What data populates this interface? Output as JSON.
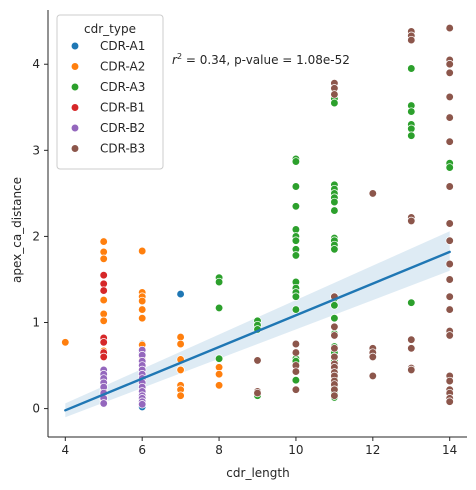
{
  "chart_data": {
    "type": "scatter",
    "xlabel": "cdr_length",
    "ylabel": "apex_ca_distance",
    "xlim": [
      3.55,
      14.45
    ],
    "ylim": [
      -0.33,
      4.63
    ],
    "x_ticks": [
      4,
      6,
      8,
      10,
      12,
      14
    ],
    "y_ticks": [
      0,
      1,
      2,
      3,
      4
    ],
    "legend": {
      "title": "cdr_type",
      "placement": "top-left",
      "entries": [
        "CDR-A1",
        "CDR-A2",
        "CDR-A3",
        "CDR-B1",
        "CDR-B2",
        "CDR-B3"
      ]
    },
    "annotation": {
      "r2_label": "r",
      "r2_sup": "2",
      "text": " =  0.34, p-value =  1.08e-52"
    },
    "regression": {
      "x": [
        4,
        14
      ],
      "y": [
        -0.02,
        1.82
      ],
      "ci_lower": [
        -0.1,
        1.6
      ],
      "ci_upper": [
        0.06,
        2.06
      ],
      "color": "#1f77b4"
    },
    "colors": {
      "CDR-A1": "#1f77b4",
      "CDR-A2": "#ff7f0e",
      "CDR-A3": "#2ca02c",
      "CDR-B1": "#d62728",
      "CDR-B2": "#9467bd",
      "CDR-B3": "#8c564b"
    },
    "series": [
      {
        "name": "CDR-A1",
        "points": [
          [
            6,
            0.02
          ],
          [
            6,
            0.1
          ],
          [
            6,
            0.2
          ],
          [
            6,
            0.35
          ],
          [
            6,
            0.5
          ],
          [
            6,
            0.65
          ],
          [
            6,
            0.75
          ],
          [
            7,
            1.33
          ]
        ]
      },
      {
        "name": "CDR-A2",
        "points": [
          [
            4,
            0.77
          ],
          [
            5,
            1.94
          ],
          [
            5,
            1.82
          ],
          [
            5,
            1.74
          ],
          [
            5,
            1.26
          ],
          [
            5,
            1.1
          ],
          [
            5,
            1.02
          ],
          [
            5,
            0.67
          ],
          [
            5,
            0.37
          ],
          [
            5,
            0.1
          ],
          [
            6,
            1.83
          ],
          [
            6,
            1.35
          ],
          [
            6,
            1.3
          ],
          [
            6,
            1.25
          ],
          [
            6,
            1.15
          ],
          [
            6,
            1.05
          ],
          [
            6,
            0.74
          ],
          [
            6,
            0.68
          ],
          [
            6,
            0.55
          ],
          [
            7,
            0.83
          ],
          [
            7,
            0.75
          ],
          [
            7,
            0.57
          ],
          [
            7,
            0.45
          ],
          [
            7,
            0.27
          ],
          [
            7,
            0.22
          ],
          [
            7,
            0.15
          ],
          [
            8,
            0.48
          ],
          [
            8,
            0.4
          ],
          [
            8,
            0.27
          ]
        ]
      },
      {
        "name": "CDR-A3",
        "points": [
          [
            8,
            1.52
          ],
          [
            8,
            1.47
          ],
          [
            8,
            1.17
          ],
          [
            8,
            0.58
          ],
          [
            9,
            1.02
          ],
          [
            9,
            0.97
          ],
          [
            9,
            0.92
          ],
          [
            9,
            0.2
          ],
          [
            9,
            0.15
          ],
          [
            10,
            2.9
          ],
          [
            10,
            2.87
          ],
          [
            10,
            2.58
          ],
          [
            10,
            2.35
          ],
          [
            10,
            2.08
          ],
          [
            10,
            2.0
          ],
          [
            10,
            1.95
          ],
          [
            10,
            1.85
          ],
          [
            10,
            1.78
          ],
          [
            10,
            1.47
          ],
          [
            10,
            1.4
          ],
          [
            10,
            1.35
          ],
          [
            10,
            1.3
          ],
          [
            10,
            1.15
          ],
          [
            10,
            0.58
          ],
          [
            10,
            0.55
          ],
          [
            10,
            0.33
          ],
          [
            11,
            3.6
          ],
          [
            11,
            3.55
          ],
          [
            11,
            2.6
          ],
          [
            11,
            2.55
          ],
          [
            11,
            2.5
          ],
          [
            11,
            2.45
          ],
          [
            11,
            2.4
          ],
          [
            11,
            2.3
          ],
          [
            11,
            1.98
          ],
          [
            11,
            1.95
          ],
          [
            11,
            1.9
          ],
          [
            11,
            1.85
          ],
          [
            11,
            1.28
          ],
          [
            11,
            1.2
          ],
          [
            11,
            1.05
          ],
          [
            11,
            0.87
          ],
          [
            11,
            0.72
          ],
          [
            11,
            0.65
          ],
          [
            11,
            0.55
          ],
          [
            11,
            0.45
          ],
          [
            11,
            0.35
          ],
          [
            11,
            0.25
          ],
          [
            11,
            0.18
          ],
          [
            11,
            0.13
          ],
          [
            13,
            3.95
          ],
          [
            13,
            3.52
          ],
          [
            13,
            3.45
          ],
          [
            13,
            3.3
          ],
          [
            13,
            3.25
          ],
          [
            13,
            3.17
          ],
          [
            13,
            1.23
          ],
          [
            14,
            2.85
          ],
          [
            14,
            2.8
          ]
        ]
      },
      {
        "name": "CDR-B1",
        "points": [
          [
            5,
            1.55
          ],
          [
            5,
            1.45
          ],
          [
            5,
            1.37
          ],
          [
            5,
            0.82
          ],
          [
            5,
            0.77
          ],
          [
            5,
            0.65
          ],
          [
            5,
            0.6
          ],
          [
            5,
            0.25
          ],
          [
            5,
            0.2
          ],
          [
            5,
            0.15
          ],
          [
            6,
            0.6
          ],
          [
            6,
            0.4
          ],
          [
            6,
            0.22
          ],
          [
            6,
            0.1
          ]
        ]
      },
      {
        "name": "CDR-B2",
        "points": [
          [
            5,
            0.45
          ],
          [
            5,
            0.4
          ],
          [
            5,
            0.35
          ],
          [
            5,
            0.3
          ],
          [
            5,
            0.25
          ],
          [
            5,
            0.18
          ],
          [
            5,
            0.12
          ],
          [
            5,
            0.06
          ],
          [
            6,
            0.68
          ],
          [
            6,
            0.62
          ],
          [
            6,
            0.55
          ],
          [
            6,
            0.5
          ],
          [
            6,
            0.45
          ],
          [
            6,
            0.4
          ],
          [
            6,
            0.35
          ],
          [
            6,
            0.3
          ],
          [
            6,
            0.25
          ],
          [
            6,
            0.2
          ],
          [
            6,
            0.15
          ],
          [
            6,
            0.12
          ],
          [
            6,
            0.08
          ],
          [
            6,
            0.05
          ]
        ]
      },
      {
        "name": "CDR-B3",
        "points": [
          [
            9,
            0.56
          ],
          [
            9,
            0.2
          ],
          [
            9,
            0.18
          ],
          [
            10,
            0.75
          ],
          [
            10,
            0.65
          ],
          [
            10,
            0.5
          ],
          [
            10,
            0.43
          ],
          [
            10,
            0.22
          ],
          [
            11,
            3.78
          ],
          [
            11,
            3.72
          ],
          [
            11,
            3.65
          ],
          [
            11,
            1.3
          ],
          [
            11,
            0.95
          ],
          [
            11,
            0.85
          ],
          [
            11,
            0.7
          ],
          [
            11,
            0.6
          ],
          [
            11,
            0.52
          ],
          [
            11,
            0.48
          ],
          [
            11,
            0.42
          ],
          [
            11,
            0.38
          ],
          [
            11,
            0.32
          ],
          [
            11,
            0.28
          ],
          [
            11,
            0.22
          ],
          [
            11,
            0.15
          ],
          [
            12,
            2.5
          ],
          [
            12,
            0.7
          ],
          [
            12,
            0.65
          ],
          [
            12,
            0.6
          ],
          [
            12,
            0.38
          ],
          [
            13,
            4.38
          ],
          [
            13,
            4.33
          ],
          [
            13,
            4.28
          ],
          [
            13,
            2.22
          ],
          [
            13,
            2.18
          ],
          [
            13,
            0.8
          ],
          [
            13,
            0.7
          ],
          [
            13,
            0.47
          ],
          [
            13,
            0.45
          ],
          [
            14,
            4.42
          ],
          [
            14,
            4.05
          ],
          [
            14,
            4.0
          ],
          [
            14,
            3.9
          ],
          [
            14,
            3.62
          ],
          [
            14,
            3.38
          ],
          [
            14,
            3.1
          ],
          [
            14,
            2.58
          ],
          [
            14,
            2.15
          ],
          [
            14,
            1.95
          ],
          [
            14,
            1.68
          ],
          [
            14,
            1.5
          ],
          [
            14,
            1.3
          ],
          [
            14,
            1.15
          ],
          [
            14,
            0.9
          ],
          [
            14,
            0.85
          ],
          [
            14,
            0.38
          ],
          [
            14,
            0.32
          ],
          [
            14,
            0.22
          ],
          [
            14,
            0.18
          ],
          [
            14,
            0.12
          ],
          [
            14,
            0.08
          ]
        ]
      }
    ]
  }
}
